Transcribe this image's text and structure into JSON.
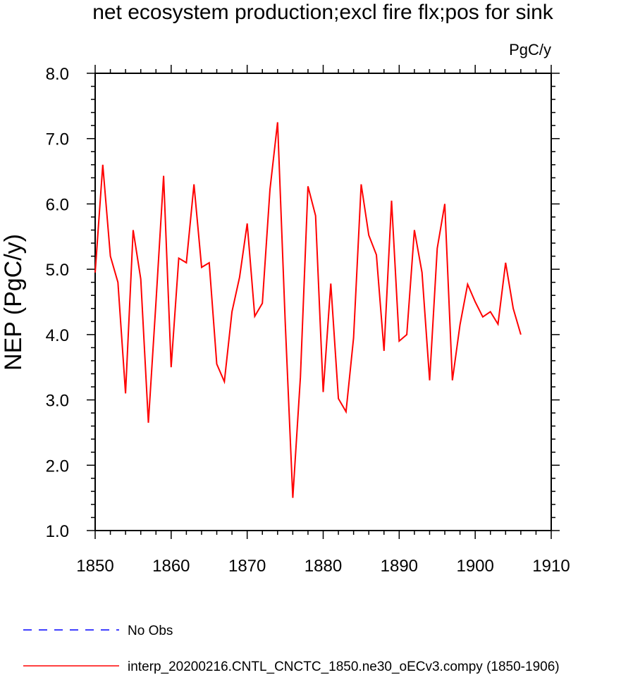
{
  "chart_data": {
    "type": "line",
    "title": "net ecosystem production;excl fire flx;pos for sink",
    "units": "PgC/y",
    "ylabel": "NEP  (PgC/y)",
    "xlabel": "",
    "xlim": [
      1850,
      1910
    ],
    "ylim": [
      1.0,
      8.0
    ],
    "xticks": [
      "1850",
      "1860",
      "1870",
      "1880",
      "1890",
      "1900",
      "1910"
    ],
    "yticks": [
      "1.0",
      "2.0",
      "3.0",
      "4.0",
      "5.0",
      "6.0",
      "7.0",
      "8.0"
    ],
    "grid": false,
    "legend_position": "bottom-left",
    "series": [
      {
        "name": "interp_20200216.CNTL_CNCTC_1850.ne30_oECv3.compy (1850-1906)",
        "color": "#ff0000",
        "style": "solid",
        "x": [
          1850,
          1851,
          1852,
          1853,
          1854,
          1855,
          1856,
          1857,
          1858,
          1859,
          1860,
          1861,
          1862,
          1863,
          1864,
          1865,
          1866,
          1867,
          1868,
          1869,
          1870,
          1871,
          1872,
          1873,
          1874,
          1875,
          1876,
          1877,
          1878,
          1879,
          1880,
          1881,
          1882,
          1883,
          1884,
          1885,
          1886,
          1887,
          1888,
          1889,
          1890,
          1891,
          1892,
          1893,
          1894,
          1895,
          1896,
          1897,
          1898,
          1899,
          1900,
          1901,
          1902,
          1903,
          1904,
          1905,
          1906
        ],
        "values": [
          4.95,
          6.6,
          5.2,
          4.8,
          3.1,
          5.6,
          4.85,
          2.65,
          4.5,
          6.43,
          3.5,
          5.17,
          5.1,
          6.3,
          5.03,
          5.1,
          3.55,
          3.28,
          4.35,
          4.88,
          5.7,
          4.28,
          4.48,
          6.22,
          7.25,
          4.2,
          1.5,
          3.35,
          6.27,
          5.82,
          3.12,
          4.78,
          3.02,
          2.82,
          3.95,
          6.3,
          5.52,
          5.22,
          3.75,
          6.05,
          3.9,
          4.0,
          5.6,
          4.95,
          3.3,
          5.32,
          6.0,
          3.3,
          4.15,
          4.77,
          4.5,
          4.27,
          4.35,
          4.16,
          5.1,
          4.4,
          4.0
        ]
      },
      {
        "name": "No Obs",
        "color": "#0000ff",
        "style": "dashed",
        "x": [],
        "values": []
      }
    ]
  }
}
